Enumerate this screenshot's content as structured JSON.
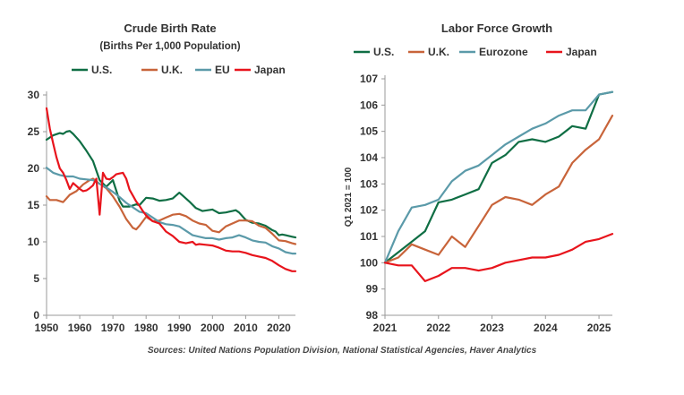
{
  "source": "Sources: United Nations Population Division, National Statistical Agencies, Haver Analytics",
  "chart_data": [
    {
      "type": "line",
      "title": "Crude Birth Rate",
      "subtitle": "(Births Per 1,000 Population)",
      "xlabel": "",
      "ylabel": "",
      "xlim": [
        1950,
        2025
      ],
      "ylim": [
        0,
        30
      ],
      "xticks": [
        1950,
        1960,
        1970,
        1980,
        1990,
        2000,
        2010,
        2020
      ],
      "yticks": [
        0,
        5,
        10,
        15,
        20,
        25,
        30
      ],
      "grid": false,
      "legend": "top",
      "series": [
        {
          "name": "U.S.",
          "color": "#0f6e44",
          "x": [
            1950,
            1952,
            1954,
            1955,
            1956,
            1957,
            1958,
            1960,
            1962,
            1964,
            1966,
            1968,
            1970,
            1972,
            1973,
            1975,
            1977,
            1978,
            1980,
            1982,
            1984,
            1986,
            1988,
            1990,
            1991,
            1993,
            1995,
            1997,
            2000,
            2002,
            2004,
            2006,
            2007,
            2008,
            2010,
            2012,
            2014,
            2016,
            2018,
            2019,
            2020,
            2021,
            2022,
            2024,
            2025
          ],
          "y": [
            23.9,
            24.5,
            24.8,
            24.7,
            25.0,
            25.1,
            24.7,
            23.7,
            22.4,
            21.0,
            18.4,
            17.5,
            18.4,
            15.6,
            14.8,
            14.8,
            15.1,
            15.0,
            16.0,
            15.9,
            15.6,
            15.7,
            15.9,
            16.7,
            16.3,
            15.5,
            14.6,
            14.2,
            14.4,
            13.9,
            14.0,
            14.2,
            14.3,
            14.0,
            13.0,
            12.6,
            12.5,
            12.2,
            11.6,
            11.4,
            10.9,
            11.0,
            10.9,
            10.7,
            10.6
          ]
        },
        {
          "name": "U.K.",
          "color": "#c8643a",
          "x": [
            1950,
            1951,
            1953,
            1955,
            1957,
            1959,
            1961,
            1963,
            1964,
            1966,
            1968,
            1970,
            1972,
            1974,
            1976,
            1977,
            1978,
            1980,
            1982,
            1984,
            1986,
            1988,
            1990,
            1992,
            1994,
            1996,
            1998,
            2000,
            2002,
            2004,
            2006,
            2008,
            2010,
            2012,
            2014,
            2016,
            2018,
            2020,
            2022,
            2024,
            2025
          ],
          "y": [
            16.2,
            15.7,
            15.7,
            15.4,
            16.4,
            16.9,
            17.8,
            18.4,
            18.6,
            17.9,
            17.3,
            16.2,
            14.8,
            13.1,
            11.9,
            11.7,
            12.2,
            13.4,
            12.8,
            12.9,
            13.3,
            13.7,
            13.8,
            13.5,
            12.9,
            12.5,
            12.3,
            11.5,
            11.3,
            12.1,
            12.5,
            12.9,
            12.9,
            12.8,
            12.2,
            11.9,
            11.1,
            10.2,
            10.1,
            9.8,
            9.7
          ]
        },
        {
          "name": "EU",
          "color": "#5b9aa9",
          "x": [
            1950,
            1952,
            1954,
            1956,
            1958,
            1960,
            1962,
            1964,
            1966,
            1968,
            1970,
            1972,
            1974,
            1976,
            1978,
            1980,
            1982,
            1984,
            1986,
            1988,
            1990,
            1992,
            1994,
            1996,
            1998,
            2000,
            2002,
            2004,
            2006,
            2008,
            2010,
            2012,
            2014,
            2016,
            2018,
            2020,
            2022,
            2024,
            2025
          ],
          "y": [
            20.1,
            19.4,
            19.1,
            18.9,
            18.9,
            18.6,
            18.5,
            18.4,
            17.9,
            17.4,
            16.8,
            16.1,
            15.3,
            14.7,
            14.1,
            13.9,
            13.3,
            12.7,
            12.4,
            12.3,
            12.1,
            11.5,
            10.9,
            10.7,
            10.5,
            10.5,
            10.3,
            10.5,
            10.6,
            10.9,
            10.6,
            10.2,
            10.0,
            9.9,
            9.4,
            9.1,
            8.6,
            8.4,
            8.4
          ]
        },
        {
          "name": "Japan",
          "color": "#e8141c",
          "x": [
            1950,
            1951,
            1952,
            1953,
            1954,
            1955,
            1956,
            1957,
            1958,
            1959,
            1960,
            1961,
            1962,
            1963,
            1964,
            1965,
            1966,
            1967,
            1968,
            1969,
            1970,
            1971,
            1972,
            1973,
            1974,
            1975,
            1976,
            1977,
            1978,
            1979,
            1980,
            1982,
            1984,
            1986,
            1988,
            1990,
            1992,
            1994,
            1995,
            1996,
            1998,
            2000,
            2002,
            2004,
            2006,
            2008,
            2010,
            2012,
            2014,
            2016,
            2018,
            2020,
            2022,
            2024,
            2025
          ],
          "y": [
            28.2,
            25.4,
            23.4,
            21.5,
            20.0,
            19.4,
            18.4,
            17.2,
            18.0,
            17.6,
            17.2,
            16.9,
            17.0,
            17.3,
            17.7,
            18.6,
            13.7,
            19.4,
            18.6,
            18.5,
            18.8,
            19.2,
            19.3,
            19.4,
            18.6,
            17.1,
            16.3,
            15.5,
            14.9,
            14.2,
            13.6,
            12.8,
            12.5,
            11.4,
            10.8,
            10.0,
            9.8,
            10.0,
            9.6,
            9.7,
            9.6,
            9.5,
            9.2,
            8.8,
            8.7,
            8.7,
            8.5,
            8.2,
            8.0,
            7.8,
            7.4,
            6.8,
            6.3,
            6.0,
            6.0
          ]
        }
      ]
    },
    {
      "type": "line",
      "title": "Labor Force Growth",
      "xlabel": "",
      "ylabel": "Q1 2021 = 100",
      "xlim": [
        2021,
        2025.25
      ],
      "ylim": [
        98,
        107
      ],
      "xticks": [
        2021,
        2022,
        2023,
        2024,
        2025
      ],
      "yticks": [
        98,
        99,
        100,
        101,
        102,
        103,
        104,
        105,
        106,
        107
      ],
      "grid": false,
      "legend": "top",
      "series": [
        {
          "name": "U.S.",
          "color": "#0f6e44",
          "x": [
            2021,
            2021.25,
            2021.5,
            2021.75,
            2022,
            2022.25,
            2022.5,
            2022.75,
            2023,
            2023.25,
            2023.5,
            2023.75,
            2024,
            2024.25,
            2024.5,
            2024.75,
            2025,
            2025.25
          ],
          "y": [
            100.0,
            100.4,
            100.8,
            101.2,
            102.3,
            102.4,
            102.6,
            102.8,
            103.8,
            104.1,
            104.6,
            104.7,
            104.6,
            104.8,
            105.2,
            105.1,
            106.4,
            106.5
          ]
        },
        {
          "name": "U.K.",
          "color": "#c8643a",
          "x": [
            2021,
            2021.25,
            2021.5,
            2021.75,
            2022,
            2022.25,
            2022.5,
            2022.75,
            2023,
            2023.25,
            2023.5,
            2023.75,
            2024,
            2024.25,
            2024.5,
            2024.75,
            2025,
            2025.25
          ],
          "y": [
            100.0,
            100.2,
            100.7,
            100.5,
            100.3,
            101.0,
            100.6,
            101.4,
            102.2,
            102.5,
            102.4,
            102.2,
            102.6,
            102.9,
            103.8,
            104.3,
            104.7,
            105.6
          ]
        },
        {
          "name": "Eurozone",
          "color": "#5b9aa9",
          "x": [
            2021,
            2021.25,
            2021.5,
            2021.75,
            2022,
            2022.25,
            2022.5,
            2022.75,
            2023,
            2023.25,
            2023.5,
            2023.75,
            2024,
            2024.25,
            2024.5,
            2024.75,
            2025,
            2025.25
          ],
          "y": [
            100.0,
            101.2,
            102.1,
            102.2,
            102.4,
            103.1,
            103.5,
            103.7,
            104.1,
            104.5,
            104.8,
            105.1,
            105.3,
            105.6,
            105.8,
            105.8,
            106.4,
            106.5
          ]
        },
        {
          "name": "Japan",
          "color": "#e8141c",
          "x": [
            2021,
            2021.25,
            2021.5,
            2021.75,
            2022,
            2022.25,
            2022.5,
            2022.75,
            2023,
            2023.25,
            2023.5,
            2023.75,
            2024,
            2024.25,
            2024.5,
            2024.75,
            2025,
            2025.25
          ],
          "y": [
            100.0,
            99.9,
            99.9,
            99.3,
            99.5,
            99.8,
            99.8,
            99.7,
            99.8,
            100.0,
            100.1,
            100.2,
            100.2,
            100.3,
            100.5,
            100.8,
            100.9,
            101.1
          ]
        }
      ]
    }
  ]
}
